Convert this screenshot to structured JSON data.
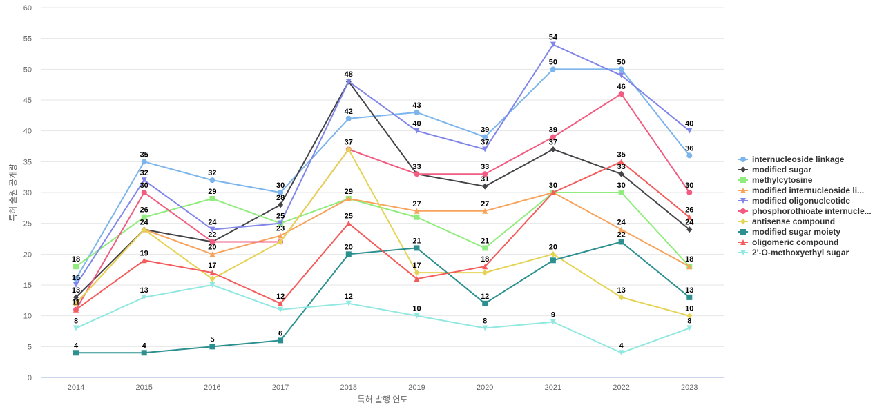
{
  "chart_data": {
    "type": "line",
    "xlabel": "특허 발행 연도",
    "ylabel": "특허 출원 공개량",
    "ylim": [
      0,
      60
    ],
    "yticks": [
      0,
      5,
      10,
      15,
      20,
      25,
      30,
      35,
      40,
      45,
      50,
      55,
      60
    ],
    "grid": true,
    "legend_position": "right",
    "categories": [
      "2014",
      "2015",
      "2016",
      "2017",
      "2018",
      "2019",
      "2020",
      "2021",
      "2022",
      "2023"
    ],
    "series": [
      {
        "name": "internucleoside linkage",
        "legend_label": "internucleoside linkage",
        "color": "#7cb5ec",
        "marker": "circle",
        "values": [
          16,
          35,
          32,
          30,
          42,
          43,
          39,
          50,
          50,
          36
        ]
      },
      {
        "name": "modified sugar",
        "legend_label": "modified sugar",
        "color": "#434348",
        "marker": "diamond",
        "values": [
          13,
          24,
          22,
          28,
          48,
          33,
          31,
          37,
          33,
          24
        ]
      },
      {
        "name": "methylcytosine",
        "legend_label": "methylcytosine",
        "color": "#90ed7d",
        "marker": "square",
        "values": [
          18,
          26,
          29,
          25,
          29,
          26,
          21,
          30,
          30,
          18
        ]
      },
      {
        "name": "modified internucleoside linkage",
        "legend_label": "modified internucleoside li...",
        "color": "#f7a35c",
        "marker": "triangle",
        "values": [
          12,
          24,
          20,
          23,
          29,
          27,
          27,
          30,
          24,
          18
        ]
      },
      {
        "name": "modified oligonucleotide",
        "legend_label": "modified oligonucleotide",
        "color": "#8085e9",
        "marker": "triangle-down",
        "values": [
          15,
          32,
          24,
          25,
          48,
          40,
          37,
          54,
          49,
          40
        ]
      },
      {
        "name": "phosphorothioate internucleoside linkage",
        "legend_label": "phosphorothioate internucle...",
        "color": "#f15c80",
        "marker": "circle",
        "values": [
          11,
          30,
          22,
          22,
          37,
          33,
          33,
          39,
          46,
          30
        ]
      },
      {
        "name": "antisense compound",
        "legend_label": "antisense compound",
        "color": "#e4d354",
        "marker": "diamond",
        "values": [
          12,
          24,
          16,
          22,
          37,
          17,
          17,
          20,
          13,
          10
        ]
      },
      {
        "name": "modified sugar moiety",
        "legend_label": "modified sugar moiety",
        "color": "#2b908f",
        "marker": "square",
        "values": [
          4,
          4,
          5,
          6,
          20,
          21,
          12,
          19,
          22,
          13
        ]
      },
      {
        "name": "oligomeric compound",
        "legend_label": "oligomeric compound",
        "color": "#f45b5b",
        "marker": "triangle",
        "values": [
          11,
          19,
          17,
          12,
          25,
          16,
          18,
          30,
          35,
          26
        ]
      },
      {
        "name": "2'-O-methoxyethyl sugar",
        "legend_label": "2'-O-methoxyethyl sugar",
        "color": "#91e8e1",
        "marker": "triangle-down",
        "values": [
          8,
          13,
          15,
          11,
          12,
          10,
          8,
          9,
          4,
          8
        ]
      }
    ],
    "data_labels": [
      {
        "x": "2014",
        "series": [
          "modified oligonucleotide",
          "methylcytosine",
          "modified sugar",
          "phosphorothioate internucleoside linkage",
          "2'-O-methoxyethyl sugar",
          "modified sugar moiety"
        ]
      },
      {
        "x": "2015",
        "series": [
          "internucleoside linkage",
          "modified oligonucleotide",
          "phosphorothioate internucleoside linkage",
          "methylcytosine",
          "antisense compound",
          "oligomeric compound",
          "2'-O-methoxyethyl sugar",
          "modified sugar moiety"
        ]
      },
      {
        "x": "2016",
        "series": [
          "internucleoside linkage",
          "methylcytosine",
          "modified oligonucleotide",
          "modified sugar",
          "modified internucleoside linkage",
          "oligomeric compound",
          "modified sugar moiety"
        ]
      },
      {
        "x": "2017",
        "series": [
          "internucleoside linkage",
          "modified sugar",
          "methylcytosine",
          "modified internucleoside linkage",
          "oligomeric compound",
          "modified sugar moiety"
        ]
      },
      {
        "x": "2018",
        "series": [
          "modified sugar",
          "internucleoside linkage",
          "phosphorothioate internucleoside linkage",
          "methylcytosine",
          "oligomeric compound",
          "modified sugar moiety",
          "2'-O-methoxyethyl sugar"
        ]
      },
      {
        "x": "2019",
        "series": [
          "internucleoside linkage",
          "modified oligonucleotide",
          "modified sugar",
          "modified internucleoside linkage",
          "modified sugar moiety",
          "antisense compound",
          "2'-O-methoxyethyl sugar"
        ]
      },
      {
        "x": "2020",
        "series": [
          "internucleoside linkage",
          "modified oligonucleotide",
          "phosphorothioate internucleoside linkage",
          "modified sugar",
          "modified internucleoside linkage",
          "methylcytosine",
          "oligomeric compound",
          "modified sugar moiety",
          "2'-O-methoxyethyl sugar"
        ]
      },
      {
        "x": "2021",
        "series": [
          "modified oligonucleotide",
          "internucleoside linkage",
          "phosphorothioate internucleoside linkage",
          "modified sugar",
          "methylcytosine",
          "antisense compound",
          "2'-O-methoxyethyl sugar"
        ]
      },
      {
        "x": "2022",
        "series": [
          "internucleoside linkage",
          "phosphorothioate internucleoside linkage",
          "oligomeric compound",
          "modified sugar",
          "methylcytosine",
          "modified internucleoside linkage",
          "modified sugar moiety",
          "antisense compound",
          "2'-O-methoxyethyl sugar"
        ]
      },
      {
        "x": "2023",
        "series": [
          "modified oligonucleotide",
          "internucleoside linkage",
          "phosphorothioate internucleoside linkage",
          "oligomeric compound",
          "modified sugar",
          "methylcytosine",
          "modified sugar moiety",
          "antisense compound",
          "2'-O-methoxyethyl sugar"
        ]
      }
    ]
  }
}
